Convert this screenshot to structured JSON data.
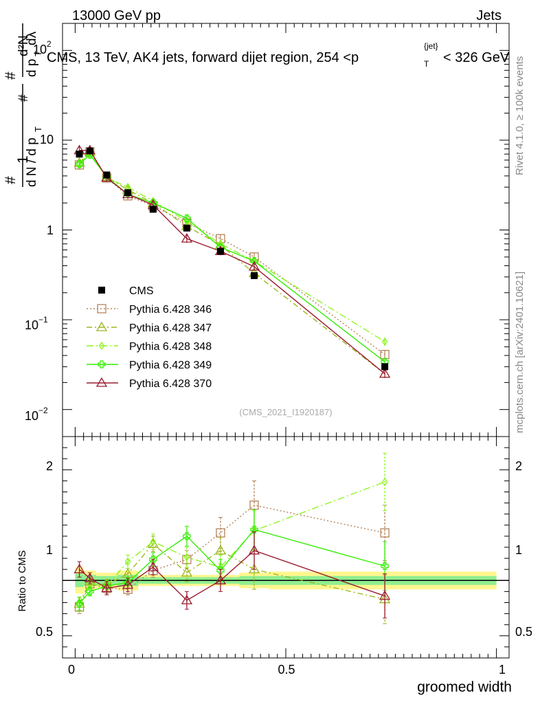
{
  "header": {
    "left": "13000 GeV pp",
    "right": "Jets"
  },
  "side_labels": {
    "rivet": "Rivet 4.1.0, ≥ 100k events",
    "mcplots": "mcplots.cern.ch [arXiv:2401.10621]"
  },
  "chart_data": {
    "type": "line",
    "title": "CMS, 13 TeV, AK4 jets, forward dijet region, 254 <p_T^{jet}< 326 GeV",
    "title_prefix": "CMS, 13 TeV, AK4 jets, forward dijet region, 254 <p",
    "title_suffix": "< 326 GeV",
    "title_sup": "{jet}",
    "title_sub": "T",
    "analysis_id": "(CMS_2021_I1920187)",
    "xlabel": "groomed width",
    "ylabel_main": "1/dN/dp_T  d²N/dp_T dλ",
    "ylabel_ratio": "Ratio to CMS",
    "xlim": [
      -0.03,
      1.03
    ],
    "ylim_main": [
      0.005,
      200
    ],
    "ylim_ratio": [
      0.3,
      2.3
    ],
    "x_ticks": [
      "0",
      "0.5",
      "1"
    ],
    "x_tick_values": [
      0,
      0.5,
      1
    ],
    "y_ticks_main": [
      "10",
      "1"
    ],
    "y_ticks_main_exp": [
      "2",
      "−1",
      "−2"
    ],
    "y_ticks_ratio": [
      "2",
      "1",
      "0.5"
    ],
    "x": [
      0.01,
      0.035,
      0.075,
      0.125,
      0.185,
      0.265,
      0.345,
      0.425,
      0.735
    ],
    "cms": {
      "name": "CMS",
      "values": [
        7.0,
        7.6,
        4.1,
        2.6,
        1.7,
        1.05,
        0.58,
        0.31,
        0.03
      ],
      "band_edges": [
        0,
        0.02,
        0.05,
        0.1,
        0.15,
        0.23,
        0.3,
        0.39,
        0.46,
        1.0
      ],
      "band_inner": [
        0.06,
        0.05,
        0.04,
        0.05,
        0.03,
        0.03,
        0.03,
        0.04,
        0.04
      ],
      "band_outer": [
        0.12,
        0.09,
        0.07,
        0.09,
        0.05,
        0.05,
        0.05,
        0.07,
        0.08
      ]
    },
    "series": [
      {
        "name": "Pythia 6.428 346",
        "color": "#b5835a",
        "dash": "2,3",
        "marker": "square",
        "values": [
          5.3,
          7.4,
          3.8,
          2.4,
          1.85,
          1.2,
          0.8,
          0.5,
          0.041
        ],
        "ratio": [
          0.76,
          0.97,
          0.93,
          0.92,
          1.09,
          1.19,
          1.43,
          1.68,
          1.43
        ],
        "ratio_err": [
          0.06,
          0.04,
          0.05,
          0.05,
          0.06,
          0.08,
          0.14,
          0.22,
          0.25
        ]
      },
      {
        "name": "Pythia 6.428 347",
        "color": "#9db61d",
        "dash": "8,4,2,4",
        "marker": "triangle",
        "values": [
          5.6,
          7.5,
          3.9,
          2.8,
          2.0,
          1.1,
          0.68,
          0.33,
          0.025
        ],
        "ratio": [
          0.79,
          0.99,
          0.96,
          1.06,
          1.33,
          1.07,
          1.27,
          1.1,
          0.83
        ],
        "ratio_err": [
          0.06,
          0.04,
          0.05,
          0.05,
          0.07,
          0.08,
          0.12,
          0.18,
          0.22
        ]
      },
      {
        "name": "Pythia 6.428 348",
        "color": "#8cf51f",
        "dash": "10,4,2,4",
        "marker": "diamond",
        "values": [
          5.5,
          7.3,
          3.8,
          3.0,
          2.1,
          1.25,
          0.7,
          0.45,
          0.057
        ],
        "ratio": [
          0.78,
          0.97,
          0.95,
          1.17,
          1.35,
          1.21,
          1.12,
          1.45,
          1.89
        ],
        "ratio_err": [
          0.06,
          0.04,
          0.05,
          0.06,
          0.07,
          0.09,
          0.11,
          0.18,
          0.26
        ]
      },
      {
        "name": "Pythia 6.428 349",
        "color": "#33ee00",
        "dash": "",
        "marker": "cross",
        "values": [
          5.4,
          6.9,
          3.9,
          2.5,
          2.0,
          1.35,
          0.64,
          0.45,
          0.034
        ],
        "ratio": [
          0.79,
          0.9,
          0.95,
          0.98,
          1.19,
          1.4,
          1.09,
          1.46,
          1.13
        ],
        "ratio_err": [
          0.06,
          0.04,
          0.05,
          0.05,
          0.06,
          0.09,
          0.1,
          0.18,
          0.22
        ]
      },
      {
        "name": "Pythia 6.428 370",
        "color": "#9b1b30",
        "dash": "",
        "marker": "triangle",
        "values": [
          7.7,
          7.7,
          3.8,
          2.5,
          1.9,
          0.8,
          0.58,
          0.39,
          0.025
        ],
        "ratio": [
          1.1,
          1.02,
          0.93,
          0.96,
          1.12,
          0.82,
          1.0,
          1.27,
          0.86
        ],
        "ratio_err": [
          0.07,
          0.05,
          0.06,
          0.06,
          0.07,
          0.08,
          0.1,
          0.17,
          0.2
        ]
      }
    ]
  }
}
